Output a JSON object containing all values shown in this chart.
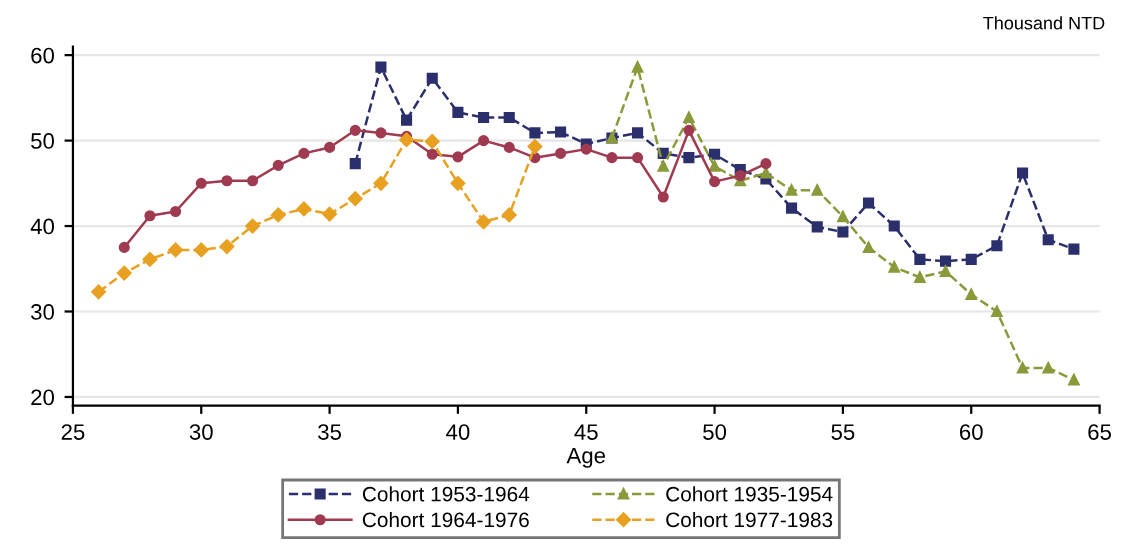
{
  "chart_data": {
    "type": "line",
    "xlabel": "Age",
    "annotations": [
      "Thousand NTD"
    ],
    "xlim": [
      25,
      65
    ],
    "xticks": [
      25,
      30,
      35,
      40,
      45,
      50,
      55,
      60,
      65
    ],
    "ylim": [
      19,
      61
    ],
    "yticks": [
      20,
      30,
      40,
      50,
      60
    ],
    "grid": "y",
    "legend": "bottom",
    "series": [
      {
        "name": "Cohort 1953-1964",
        "color": "#2b2f6b",
        "marker": "square",
        "line_style": "dashed",
        "x": [
          36,
          37,
          38,
          39,
          40,
          41,
          42,
          43,
          44,
          45,
          46,
          47,
          48,
          49,
          50,
          51,
          52,
          53,
          54,
          55,
          56,
          57,
          58,
          59,
          60,
          61,
          62,
          63,
          64
        ],
        "values": [
          47.3,
          58.6,
          52.4,
          57.3,
          53.3,
          52.7,
          52.7,
          50.9,
          51.0,
          49.6,
          50.3,
          50.9,
          48.5,
          48.0,
          48.4,
          46.6,
          45.5,
          42.1,
          39.9,
          39.3,
          42.7,
          40.0,
          36.1,
          35.9,
          36.1,
          37.7,
          46.2,
          38.4,
          37.3
        ]
      },
      {
        "name": "Cohort 1935-1954",
        "color": "#8a9a3a",
        "marker": "triangle",
        "line_style": "dashed",
        "x": [
          46,
          47,
          48,
          49,
          50,
          51,
          52,
          53,
          54,
          55,
          56,
          57,
          58,
          59,
          60,
          61,
          62,
          63,
          64
        ],
        "values": [
          50.3,
          58.6,
          47.0,
          52.7,
          47.0,
          45.3,
          46.2,
          44.2,
          44.2,
          41.1,
          37.5,
          35.2,
          34.0,
          34.7,
          32.0,
          30.0,
          23.4,
          23.4,
          22.0
        ]
      },
      {
        "name": "Cohort 1964-1976",
        "color": "#a03a50",
        "marker": "circle",
        "line_style": "solid",
        "x": [
          27,
          28,
          29,
          30,
          31,
          32,
          33,
          34,
          35,
          36,
          37,
          38,
          39,
          40,
          41,
          42,
          43,
          44,
          45,
          46,
          47,
          48,
          49,
          50,
          51,
          52
        ],
        "values": [
          37.5,
          41.2,
          41.7,
          45.0,
          45.3,
          45.3,
          47.1,
          48.5,
          49.2,
          51.2,
          50.9,
          50.5,
          48.4,
          48.1,
          50.0,
          49.2,
          48.0,
          48.5,
          49.0,
          48.0,
          48.0,
          43.4,
          51.2,
          45.2,
          45.9,
          47.3
        ]
      },
      {
        "name": "Cohort 1977-1983",
        "color": "#e8a020",
        "marker": "diamond",
        "line_style": "dashed",
        "x": [
          26,
          27,
          28,
          29,
          30,
          31,
          32,
          33,
          34,
          35,
          36,
          37,
          38,
          39,
          40,
          41,
          42,
          43
        ],
        "values": [
          32.3,
          34.5,
          36.1,
          37.2,
          37.2,
          37.6,
          40.0,
          41.3,
          42.0,
          41.4,
          43.2,
          45.0,
          50.1,
          49.9,
          45.0,
          40.5,
          41.3,
          49.3
        ]
      }
    ]
  }
}
